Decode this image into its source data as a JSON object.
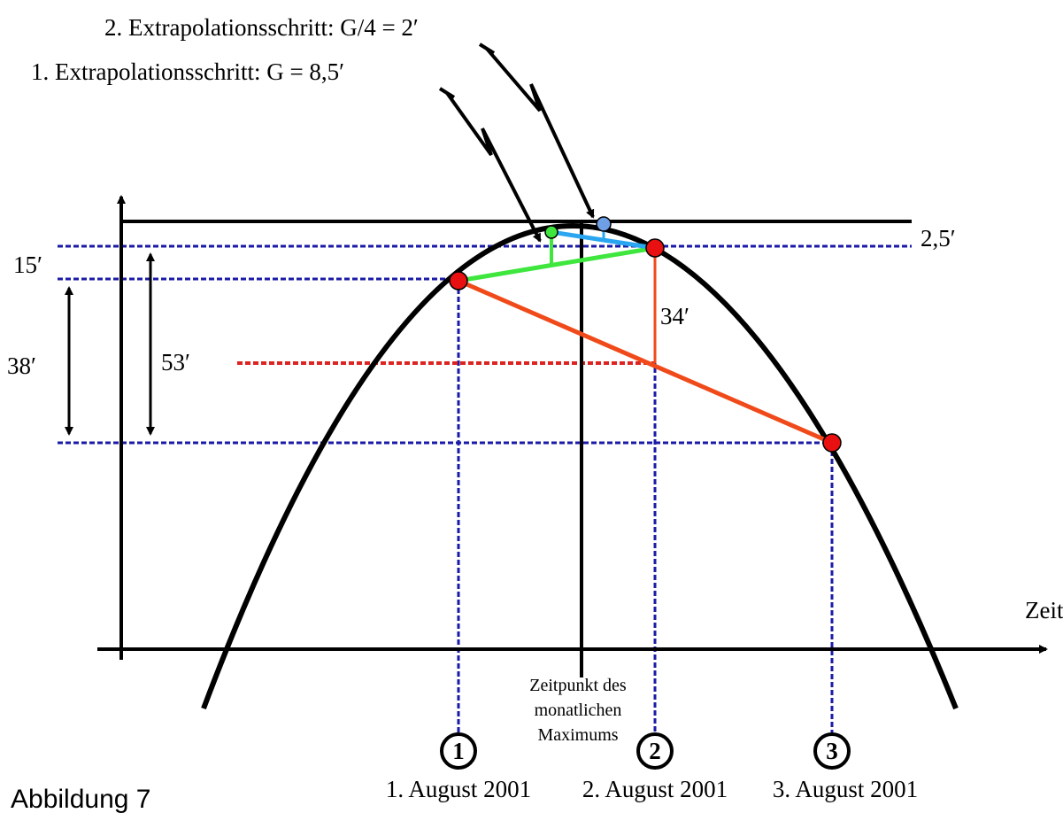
{
  "title_lines": [
    "2. Extrapolationsschritt: G/4 = 2′",
    "1. Extrapolationsschritt: G = 8,5′"
  ],
  "labels": {
    "top": "2,5′",
    "a": "15′",
    "b": "38′",
    "c": "53′",
    "d": "34′",
    "axis": "Zeit"
  },
  "maximum_note": [
    "Zeitpunkt des",
    "monatlichen",
    "Maximums"
  ],
  "days": [
    {
      "number": "1",
      "date": "1. August 2001"
    },
    {
      "number": "2",
      "date": "2. August 2001"
    },
    {
      "number": "3",
      "date": "3. August 2001"
    }
  ],
  "caption": "Abbildung 7"
}
